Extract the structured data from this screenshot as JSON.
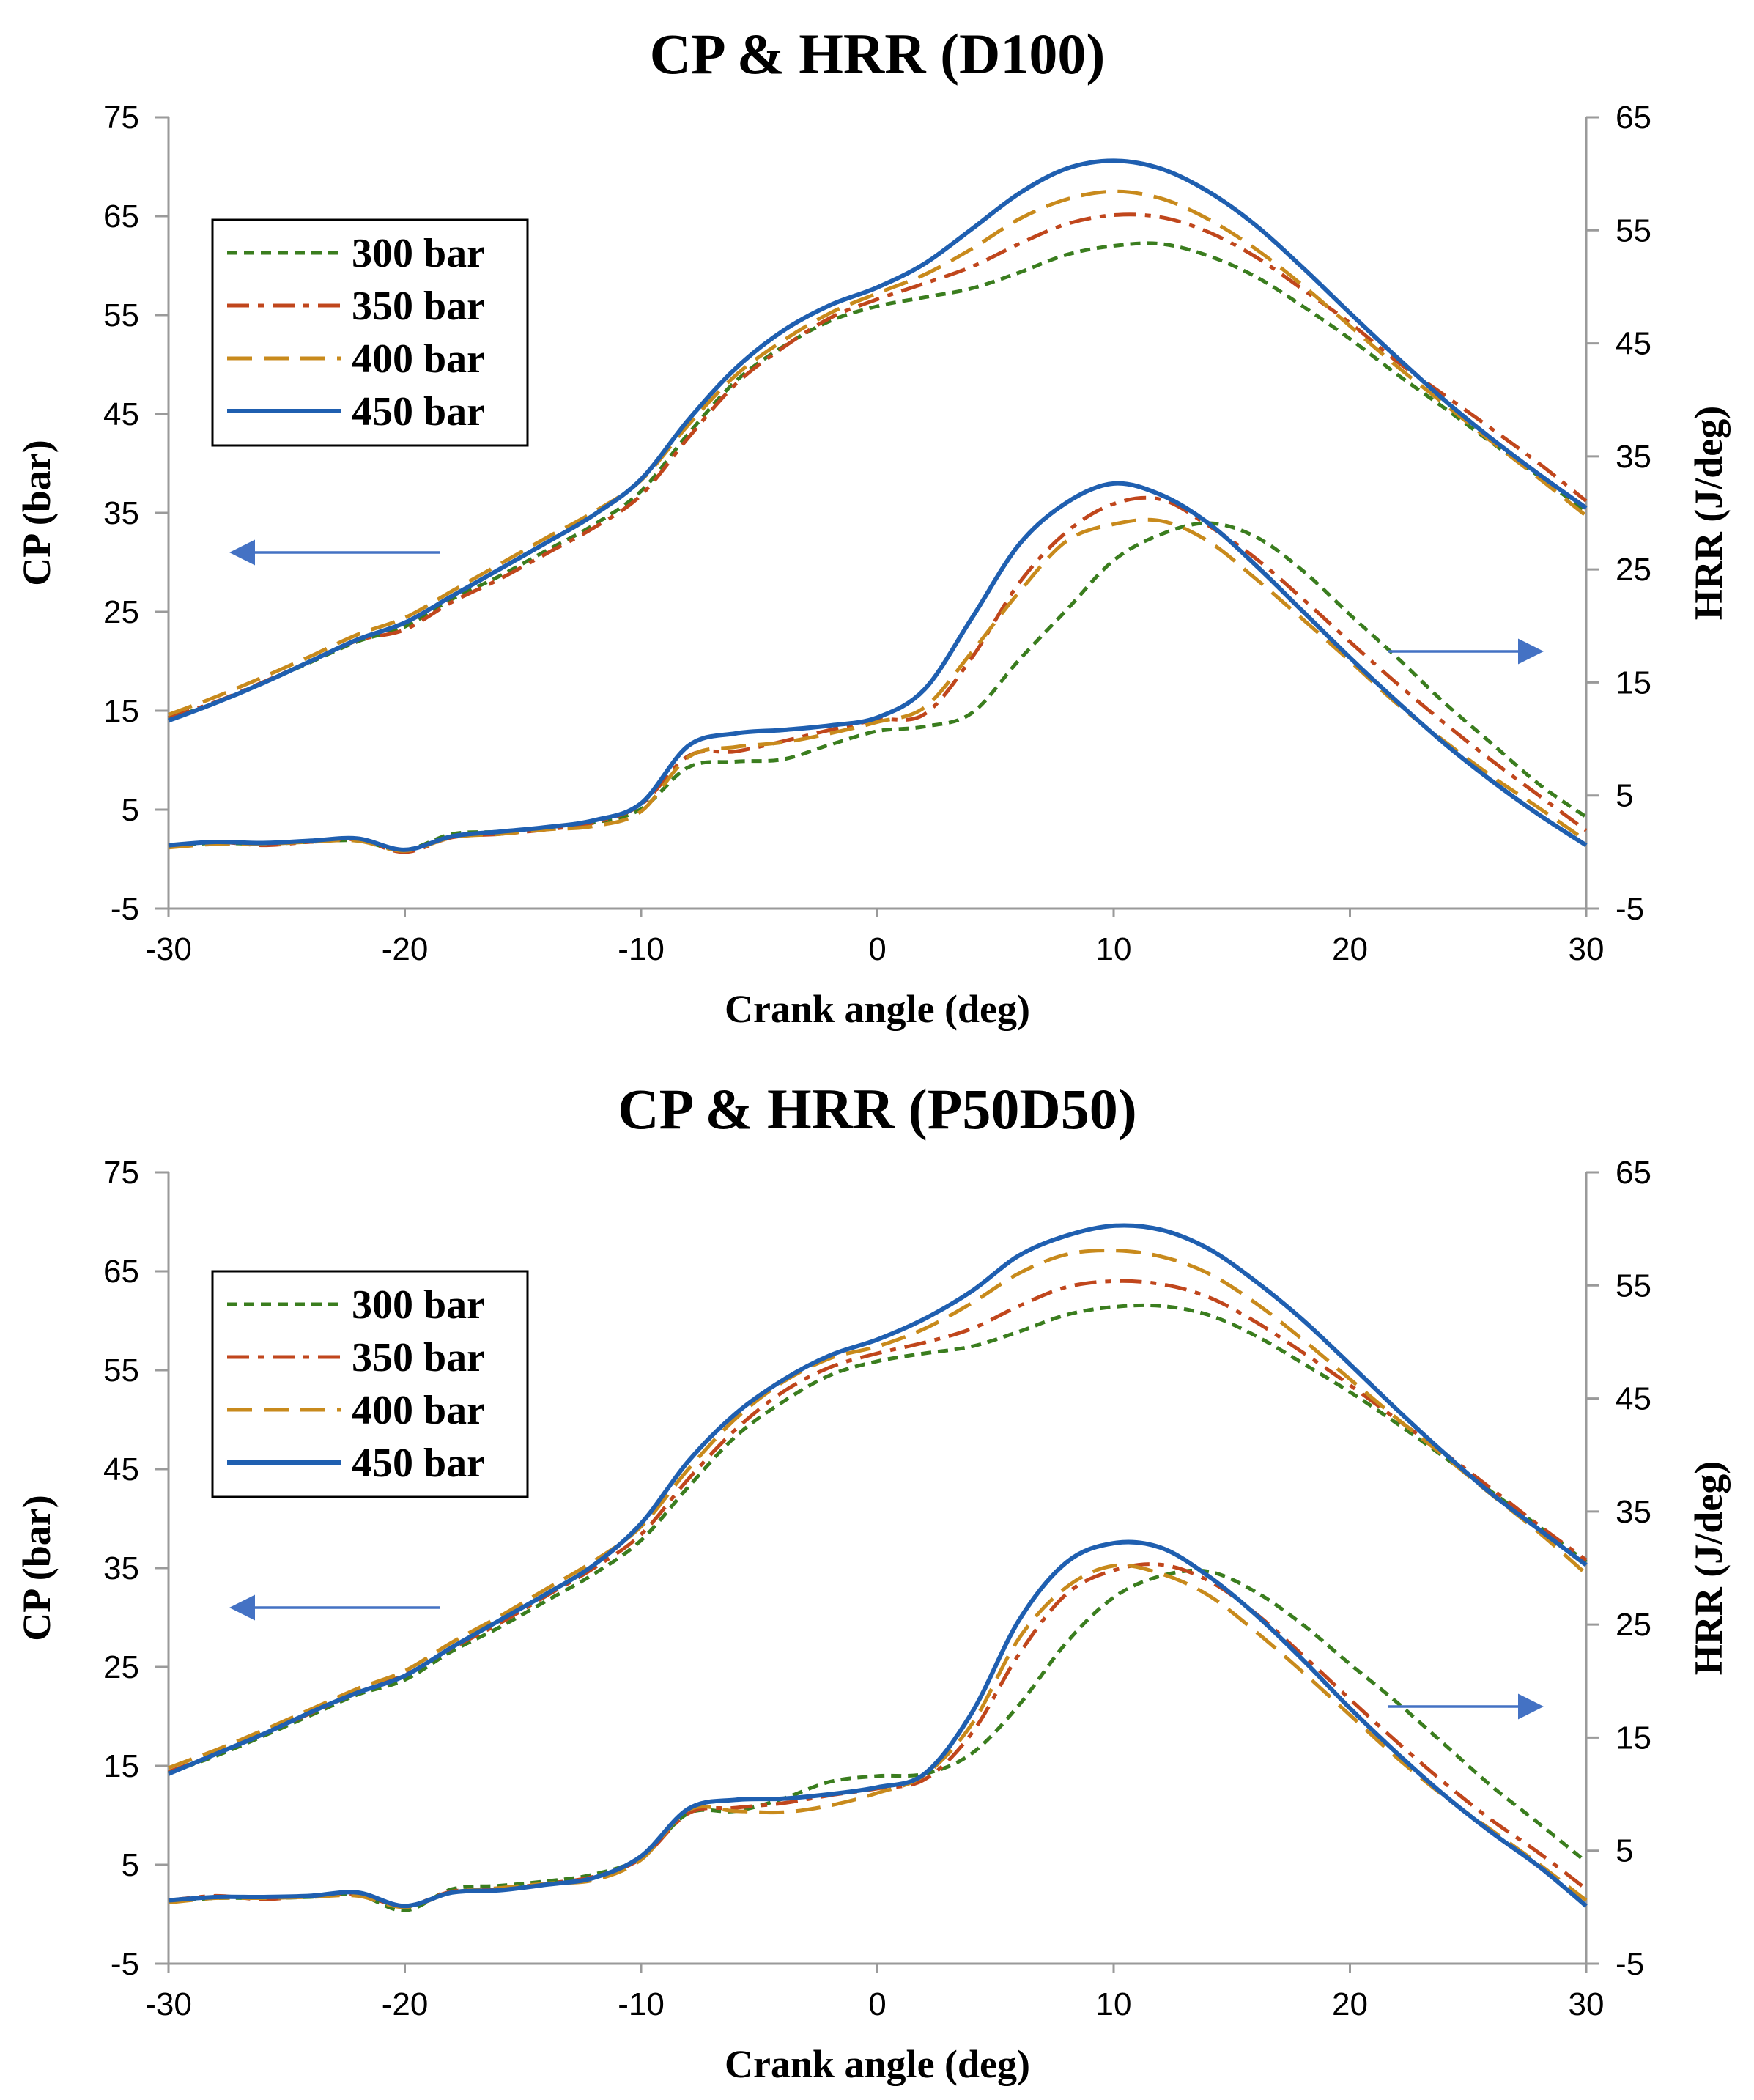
{
  "chart_data": [
    {
      "type": "line",
      "title": "CP & HRR  (D100)",
      "xlabel": "Crank angle (deg)",
      "ylabel": "CP (bar)",
      "y2label": "HRR (J/deg)",
      "xlim": [
        -30,
        30
      ],
      "ylim": [
        -5,
        75
      ],
      "y2lim": [
        -5,
        65
      ],
      "x_ticks": [
        -30,
        -20,
        -10,
        0,
        10,
        20,
        30
      ],
      "y_ticks": [
        -5,
        5,
        15,
        25,
        35,
        45,
        55,
        65,
        75
      ],
      "y2_ticks": [
        -5,
        5,
        15,
        25,
        35,
        45,
        55,
        65
      ],
      "grid": false,
      "legend_position": "top-left",
      "annotations": [
        "arrow pointing left to CP axis",
        "arrow pointing right to HRR axis"
      ],
      "x": [
        -30,
        -28,
        -26,
        -24,
        -22,
        -20,
        -18,
        -16,
        -14,
        -12,
        -10,
        -8,
        -6,
        -4,
        -2,
        0,
        2,
        4,
        6,
        8,
        10,
        12,
        14,
        16,
        18,
        20,
        22,
        24,
        26,
        28,
        30
      ],
      "series": [
        {
          "name": "300 bar",
          "axis": "CP",
          "color": "#3a7d1e",
          "dash": "short-dash",
          "values": [
            14.2,
            15.8,
            17.8,
            19.9,
            22.0,
            23.5,
            26.3,
            28.6,
            31.2,
            33.8,
            37.2,
            43.0,
            48.3,
            51.8,
            54.4,
            55.9,
            56.8,
            57.7,
            59.3,
            61.1,
            62.0,
            62.2,
            61.0,
            58.9,
            55.9,
            52.6,
            49.0,
            45.6,
            42.1,
            38.7,
            35.1
          ]
        },
        {
          "name": "350 bar",
          "axis": "CP",
          "color": "#c0461c",
          "dash": "dash-dot",
          "values": [
            14.3,
            15.9,
            17.9,
            20.0,
            22.1,
            23.2,
            26.0,
            28.3,
            30.9,
            33.5,
            36.8,
            42.6,
            48.0,
            51.7,
            54.7,
            56.6,
            58.2,
            59.9,
            62.2,
            64.2,
            65.1,
            64.9,
            63.4,
            60.9,
            57.6,
            54.2,
            50.3,
            46.9,
            43.5,
            40.0,
            36.2
          ]
        },
        {
          "name": "400 bar",
          "axis": "CP",
          "color": "#c88a1c",
          "dash": "long-dash",
          "values": [
            14.6,
            16.4,
            18.4,
            20.5,
            22.7,
            24.4,
            27.1,
            29.8,
            32.5,
            35.1,
            38.3,
            43.9,
            48.9,
            52.4,
            55.2,
            57.2,
            59.1,
            61.7,
            64.7,
            66.7,
            67.5,
            66.8,
            64.7,
            61.7,
            58.0,
            53.9,
            49.8,
            46.0,
            42.2,
            38.5,
            34.7
          ]
        },
        {
          "name": "450 bar",
          "axis": "CP",
          "color": "#1f5fb0",
          "dash": "solid",
          "values": [
            14.0,
            15.8,
            17.8,
            20.0,
            22.2,
            23.9,
            26.6,
            29.3,
            32.0,
            34.8,
            38.4,
            44.4,
            49.6,
            53.4,
            56.0,
            57.8,
            60.2,
            63.7,
            67.3,
            69.8,
            70.6,
            69.8,
            67.5,
            64.1,
            59.8,
            55.2,
            50.7,
            46.4,
            42.5,
            38.9,
            35.5
          ]
        },
        {
          "name": "300 bar",
          "axis": "HRR",
          "color": "#3a7d1e",
          "dash": "short-dash",
          "values": [
            0.5,
            0.8,
            0.7,
            0.9,
            1.0,
            0.2,
            1.6,
            1.8,
            2.2,
            2.6,
            3.8,
            7.5,
            8.0,
            8.2,
            9.5,
            10.7,
            11.1,
            12.3,
            17.0,
            21.4,
            25.8,
            28.1,
            29.1,
            27.9,
            24.9,
            21.0,
            17.2,
            13.2,
            9.6,
            6.0,
            3.1
          ]
        },
        {
          "name": "350 bar",
          "axis": "HRR",
          "color": "#c0461c",
          "dash": "dash-dot",
          "values": [
            0.6,
            0.9,
            0.6,
            0.9,
            1.1,
            0.0,
            1.3,
            1.6,
            2.0,
            2.6,
            4.2,
            8.5,
            8.9,
            9.8,
            10.8,
            11.7,
            12.2,
            17.2,
            23.8,
            28.3,
            30.8,
            31.2,
            28.9,
            26.0,
            22.4,
            18.6,
            14.9,
            11.4,
            8.1,
            5.0,
            1.9
          ]
        },
        {
          "name": "400 bar",
          "axis": "HRR",
          "color": "#c88a1c",
          "dash": "long-dash",
          "values": [
            0.4,
            0.7,
            0.7,
            0.9,
            1.0,
            0.1,
            1.3,
            1.6,
            2.0,
            2.3,
            3.6,
            8.4,
            9.3,
            9.7,
            10.5,
            11.5,
            12.8,
            17.7,
            23.0,
            27.5,
            29.0,
            29.3,
            27.5,
            24.2,
            20.6,
            16.9,
            13.1,
            9.8,
            6.7,
            3.9,
            1.0
          ]
        },
        {
          "name": "450 bar",
          "axis": "HRR",
          "color": "#1f5fb0",
          "dash": "solid",
          "values": [
            0.6,
            0.9,
            0.8,
            1.0,
            1.2,
            0.2,
            1.4,
            1.8,
            2.2,
            2.8,
            4.3,
            9.4,
            10.5,
            10.8,
            11.2,
            11.9,
            14.4,
            20.7,
            27.2,
            30.9,
            32.6,
            31.6,
            29.1,
            25.4,
            21.3,
            17.2,
            13.3,
            9.6,
            6.3,
            3.3,
            0.6
          ]
        }
      ]
    },
    {
      "type": "line",
      "title": "CP & HRR  (P50D50)",
      "xlabel": "Crank angle (deg)",
      "ylabel": "CP (bar)",
      "y2label": "HRR (J/deg)",
      "xlim": [
        -30,
        30
      ],
      "ylim": [
        -5,
        75
      ],
      "y2lim": [
        -5,
        65
      ],
      "x_ticks": [
        -30,
        -20,
        -10,
        0,
        10,
        20,
        30
      ],
      "y_ticks": [
        -5,
        5,
        15,
        25,
        35,
        45,
        55,
        65,
        75
      ],
      "y2_ticks": [
        -5,
        5,
        15,
        25,
        35,
        45,
        55,
        65
      ],
      "grid": false,
      "legend_position": "top-left",
      "annotations": [
        "arrow pointing left to CP axis",
        "arrow pointing right to HRR axis"
      ],
      "x": [
        -30,
        -28,
        -26,
        -24,
        -22,
        -20,
        -18,
        -16,
        -14,
        -12,
        -10,
        -8,
        -6,
        -4,
        -2,
        0,
        2,
        4,
        6,
        8,
        10,
        12,
        14,
        16,
        18,
        20,
        22,
        24,
        26,
        28,
        30
      ],
      "series": [
        {
          "name": "300 bar",
          "axis": "CP",
          "color": "#3a7d1e",
          "dash": "short-dash",
          "values": [
            14.3,
            16.0,
            18.0,
            20.1,
            22.2,
            23.7,
            26.6,
            29.0,
            31.7,
            34.4,
            37.8,
            43.2,
            48.3,
            51.8,
            54.5,
            55.9,
            56.7,
            57.4,
            58.9,
            60.6,
            61.4,
            61.5,
            60.6,
            58.5,
            55.7,
            52.8,
            49.6,
            46.2,
            42.7,
            39.2,
            35.6
          ]
        },
        {
          "name": "350 bar",
          "axis": "CP",
          "color": "#c0461c",
          "dash": "dash-dot",
          "values": [
            14.4,
            16.2,
            18.2,
            20.3,
            22.4,
            24.2,
            26.9,
            29.4,
            32.2,
            35.0,
            38.4,
            44.0,
            49.0,
            52.8,
            55.3,
            56.7,
            57.8,
            59.2,
            61.5,
            63.4,
            64.0,
            63.7,
            62.4,
            59.9,
            56.8,
            53.5,
            50.0,
            46.6,
            43.0,
            39.3,
            35.8
          ]
        },
        {
          "name": "400 bar",
          "axis": "CP",
          "color": "#c88a1c",
          "dash": "long-dash",
          "values": [
            14.8,
            16.6,
            18.6,
            20.7,
            22.8,
            24.6,
            27.5,
            30.1,
            32.9,
            35.7,
            39.2,
            45.0,
            50.1,
            53.8,
            56.2,
            57.4,
            59.2,
            61.8,
            64.8,
            66.7,
            67.1,
            66.5,
            64.8,
            61.8,
            58.1,
            54.1,
            50.1,
            46.3,
            42.4,
            38.6,
            34.4
          ]
        },
        {
          "name": "450 bar",
          "axis": "CP",
          "color": "#1f5fb0",
          "dash": "solid",
          "values": [
            14.2,
            16.2,
            18.2,
            20.4,
            22.4,
            24.1,
            27.0,
            29.7,
            32.4,
            35.3,
            39.5,
            45.8,
            50.6,
            54.0,
            56.5,
            58.1,
            60.2,
            63.0,
            66.6,
            68.6,
            69.6,
            69.2,
            67.3,
            64.0,
            60.1,
            55.6,
            51.0,
            46.6,
            42.5,
            38.9,
            35.3
          ]
        },
        {
          "name": "300 bar",
          "axis": "HRR",
          "color": "#3a7d1e",
          "dash": "short-dash",
          "values": [
            0.5,
            0.8,
            0.8,
            0.9,
            1.1,
            -0.3,
            1.6,
            1.9,
            2.3,
            2.9,
            4.4,
            8.3,
            8.5,
            9.6,
            11.1,
            11.6,
            11.8,
            13.6,
            17.9,
            23.4,
            27.4,
            29.3,
            29.7,
            27.9,
            25.0,
            21.5,
            18.1,
            14.4,
            10.7,
            7.4,
            4.0
          ]
        },
        {
          "name": "350 bar",
          "axis": "HRR",
          "color": "#c0461c",
          "dash": "dash-dot",
          "values": [
            0.6,
            1.0,
            0.7,
            1.0,
            1.1,
            0.1,
            1.4,
            1.6,
            2.1,
            2.7,
            4.3,
            8.3,
            8.8,
            9.2,
            9.9,
            10.5,
            11.3,
            15.4,
            22.4,
            27.7,
            29.8,
            30.3,
            28.9,
            26.0,
            22.3,
            18.4,
            14.6,
            11.0,
            7.7,
            4.8,
            1.6
          ]
        },
        {
          "name": "400 bar",
          "axis": "HRR",
          "color": "#c88a1c",
          "dash": "long-dash",
          "values": [
            0.4,
            0.8,
            0.8,
            0.9,
            1.0,
            0.0,
            1.3,
            1.7,
            2.1,
            2.4,
            4.2,
            8.6,
            8.5,
            8.4,
            9.0,
            10.1,
            11.7,
            16.2,
            23.8,
            28.3,
            30.2,
            29.5,
            27.6,
            24.4,
            20.8,
            17.0,
            13.2,
            9.8,
            6.8,
            3.8,
            0.6
          ]
        },
        {
          "name": "450 bar",
          "axis": "HRR",
          "color": "#1f5fb0",
          "dash": "solid",
          "values": [
            0.6,
            0.9,
            0.9,
            1.0,
            1.3,
            0.1,
            1.3,
            1.5,
            2.0,
            2.6,
            4.5,
            8.7,
            9.5,
            9.6,
            10.0,
            10.6,
            11.8,
            17.2,
            25.4,
            30.5,
            32.2,
            31.8,
            29.3,
            25.9,
            21.9,
            17.6,
            13.6,
            9.9,
            6.6,
            3.6,
            0.1
          ]
        }
      ]
    }
  ]
}
